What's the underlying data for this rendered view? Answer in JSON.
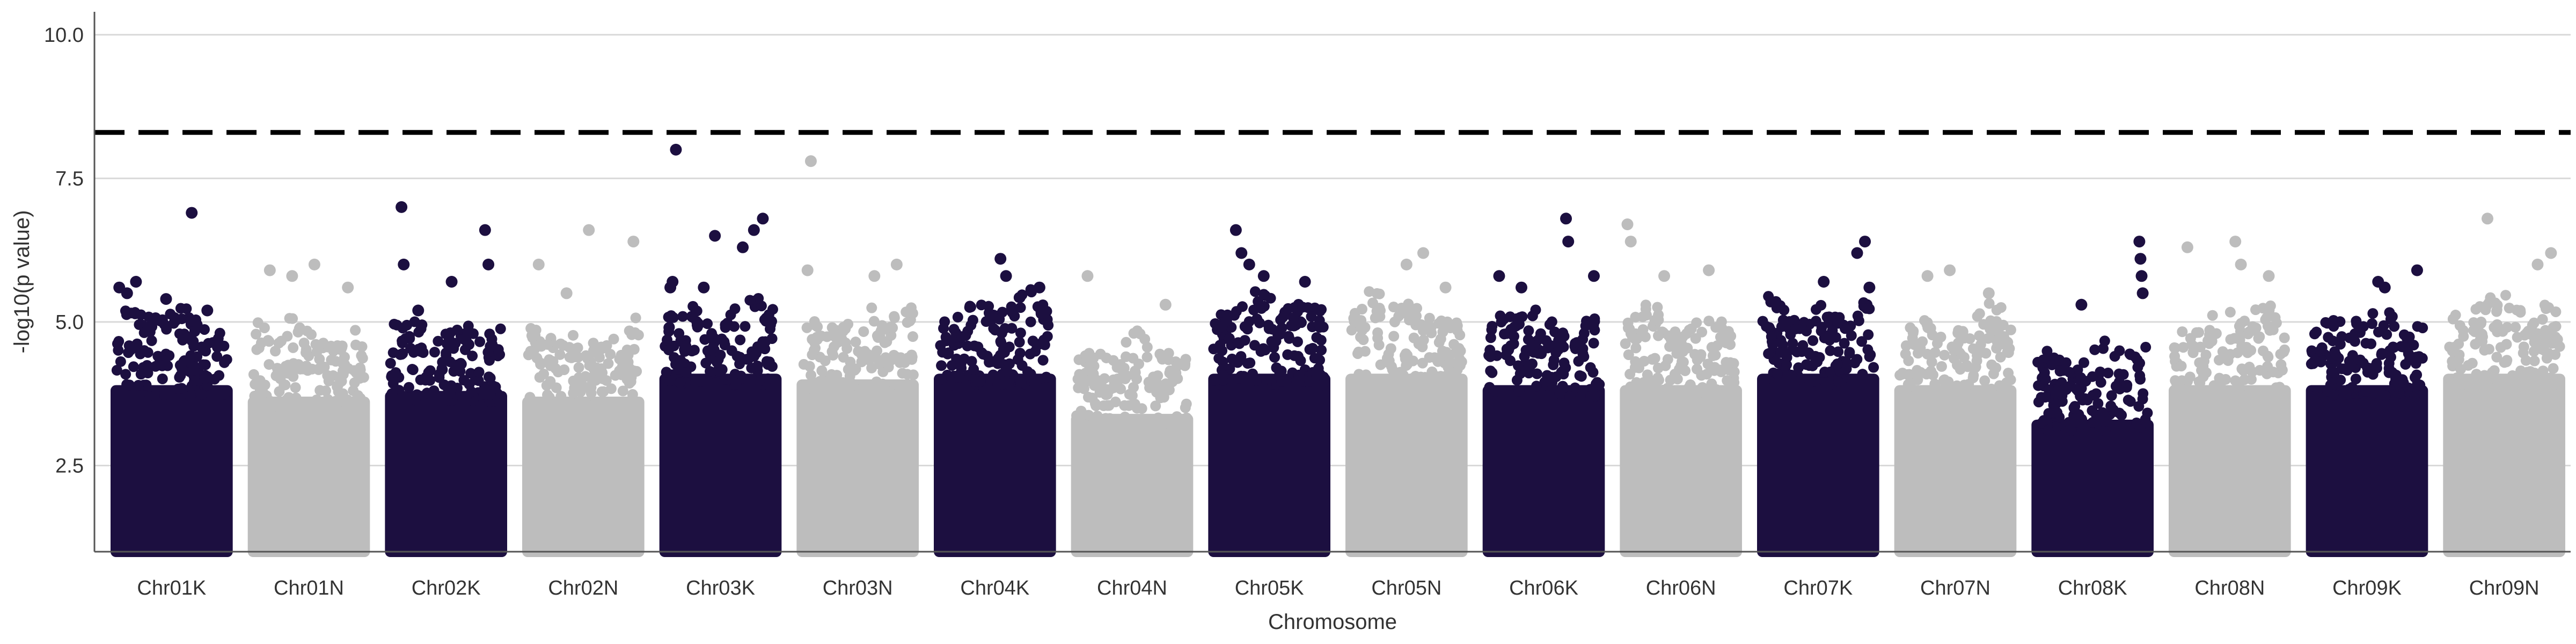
{
  "chart_data": {
    "type": "scatter",
    "subtype": "manhattan",
    "title": "",
    "xlabel": "Chromosome",
    "ylabel": "-log10(p value)",
    "ylim": [
      1.0,
      10.4
    ],
    "yticks": [
      2.5,
      5.0,
      7.5,
      10.0
    ],
    "ytick_labels": [
      "2.5",
      "5.0",
      "7.5",
      "10.0"
    ],
    "grid": "horizontal-major",
    "legend": "none",
    "threshold": {
      "value": 8.3,
      "style": "dashed",
      "color": "#000000"
    },
    "colors": {
      "odd": "#1c0f40",
      "even": "#bdbdbd",
      "grid": "#d9d9d9",
      "axis": "#555555"
    },
    "categories": [
      "Chr01K",
      "Chr01N",
      "Chr02K",
      "Chr02N",
      "Chr03K",
      "Chr03N",
      "Chr04K",
      "Chr04N",
      "Chr05K",
      "Chr05N",
      "Chr06K",
      "Chr06N",
      "Chr07K",
      "Chr07N",
      "Chr08K",
      "Chr08N",
      "Chr09K",
      "Chr09N"
    ],
    "series": [
      {
        "category": "Chr01K",
        "color": "odd",
        "base_max": 4.8,
        "top_points": [
          [
            0.03,
            5.6
          ],
          [
            0.1,
            5.5
          ],
          [
            0.18,
            5.7
          ],
          [
            0.45,
            5.4
          ],
          [
            0.68,
            6.9
          ],
          [
            0.82,
            5.2
          ]
        ]
      },
      {
        "category": "Chr01N",
        "color": "even",
        "base_max": 4.6,
        "top_points": [
          [
            0.15,
            5.9
          ],
          [
            0.35,
            5.8
          ],
          [
            0.55,
            6.0
          ],
          [
            0.85,
            5.6
          ]
        ]
      },
      {
        "category": "Chr02K",
        "color": "odd",
        "base_max": 4.7,
        "top_points": [
          [
            0.1,
            7.0
          ],
          [
            0.12,
            6.0
          ],
          [
            0.25,
            5.2
          ],
          [
            0.55,
            5.7
          ],
          [
            0.85,
            6.6
          ],
          [
            0.88,
            6.0
          ]
        ]
      },
      {
        "category": "Chr02N",
        "color": "even",
        "base_max": 4.6,
        "top_points": [
          [
            0.1,
            6.0
          ],
          [
            0.35,
            5.5
          ],
          [
            0.55,
            6.6
          ],
          [
            0.95,
            6.4
          ]
        ]
      },
      {
        "category": "Chr03K",
        "color": "odd",
        "base_max": 5.0,
        "top_points": [
          [
            0.05,
            5.6
          ],
          [
            0.07,
            5.7
          ],
          [
            0.1,
            8.0
          ],
          [
            0.35,
            5.6
          ],
          [
            0.45,
            6.5
          ],
          [
            0.7,
            6.3
          ],
          [
            0.8,
            6.6
          ],
          [
            0.88,
            6.8
          ]
        ]
      },
      {
        "category": "Chr03N",
        "color": "even",
        "base_max": 4.9,
        "top_points": [
          [
            0.05,
            5.9
          ],
          [
            0.08,
            7.8
          ],
          [
            0.65,
            5.8
          ],
          [
            0.85,
            6.0
          ]
        ]
      },
      {
        "category": "Chr04K",
        "color": "odd",
        "base_max": 5.0,
        "top_points": [
          [
            0.55,
            6.1
          ],
          [
            0.6,
            5.8
          ],
          [
            0.9,
            5.6
          ]
        ]
      },
      {
        "category": "Chr04N",
        "color": "even",
        "base_max": 4.3,
        "top_points": [
          [
            0.1,
            5.8
          ],
          [
            0.8,
            5.3
          ]
        ]
      },
      {
        "category": "Chr05K",
        "color": "odd",
        "base_max": 5.0,
        "top_points": [
          [
            0.2,
            6.6
          ],
          [
            0.25,
            6.2
          ],
          [
            0.32,
            6.0
          ],
          [
            0.45,
            5.8
          ],
          [
            0.82,
            5.7
          ]
        ]
      },
      {
        "category": "Chr05N",
        "color": "even",
        "base_max": 5.0,
        "top_points": [
          [
            0.5,
            6.0
          ],
          [
            0.65,
            6.2
          ],
          [
            0.85,
            5.6
          ]
        ]
      },
      {
        "category": "Chr06K",
        "color": "odd",
        "base_max": 4.8,
        "top_points": [
          [
            0.1,
            5.8
          ],
          [
            0.3,
            5.6
          ],
          [
            0.7,
            6.8
          ],
          [
            0.72,
            6.4
          ],
          [
            0.95,
            5.8
          ]
        ]
      },
      {
        "category": "Chr06N",
        "color": "even",
        "base_max": 4.8,
        "top_points": [
          [
            0.02,
            6.7
          ],
          [
            0.05,
            6.4
          ],
          [
            0.35,
            5.8
          ],
          [
            0.75,
            5.9
          ]
        ]
      },
      {
        "category": "Chr07K",
        "color": "odd",
        "base_max": 5.0,
        "top_points": [
          [
            0.55,
            5.7
          ],
          [
            0.85,
            6.2
          ],
          [
            0.92,
            6.4
          ],
          [
            0.96,
            5.6
          ]
        ]
      },
      {
        "category": "Chr07N",
        "color": "even",
        "base_max": 4.8,
        "top_points": [
          [
            0.25,
            5.8
          ],
          [
            0.45,
            5.9
          ],
          [
            0.8,
            5.5
          ]
        ]
      },
      {
        "category": "Chr08K",
        "color": "odd",
        "base_max": 4.2,
        "top_points": [
          [
            0.4,
            5.3
          ],
          [
            0.92,
            6.4
          ],
          [
            0.93,
            6.1
          ],
          [
            0.94,
            5.8
          ],
          [
            0.95,
            5.5
          ]
        ]
      },
      {
        "category": "Chr08N",
        "color": "even",
        "base_max": 4.8,
        "top_points": [
          [
            0.12,
            6.3
          ],
          [
            0.55,
            6.4
          ],
          [
            0.6,
            6.0
          ],
          [
            0.85,
            5.8
          ]
        ]
      },
      {
        "category": "Chr09K",
        "color": "odd",
        "base_max": 4.8,
        "top_points": [
          [
            0.6,
            5.7
          ],
          [
            0.66,
            5.6
          ],
          [
            0.95,
            5.9
          ]
        ]
      },
      {
        "category": "Chr09N",
        "color": "even",
        "base_max": 5.0,
        "top_points": [
          [
            0.35,
            6.8
          ],
          [
            0.8,
            6.0
          ],
          [
            0.92,
            6.2
          ]
        ]
      }
    ]
  }
}
